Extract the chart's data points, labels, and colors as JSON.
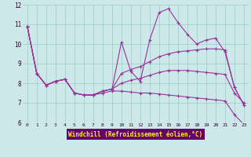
{
  "xlabel": "Windchill (Refroidissement éolien,°C)",
  "background_color": "#cce8e8",
  "line_color": "#993399",
  "grid_color": "#99cccc",
  "xlabel_bg": "#660066",
  "xlabel_fg": "#ffff00",
  "xlim": [
    -0.5,
    23.5
  ],
  "ylim": [
    6,
    12
  ],
  "yticks": [
    6,
    7,
    8,
    9,
    10,
    11,
    12
  ],
  "xticks": [
    0,
    1,
    2,
    3,
    4,
    5,
    6,
    7,
    8,
    9,
    10,
    11,
    12,
    13,
    14,
    15,
    16,
    17,
    18,
    19,
    20,
    21,
    22,
    23
  ],
  "lines": [
    {
      "x": [
        0,
        1,
        2,
        3,
        4,
        5,
        6,
        7,
        8,
        9,
        10,
        11,
        12,
        13,
        14,
        15,
        16,
        17,
        18,
        19,
        20,
        21,
        22,
        23
      ],
      "y": [
        10.9,
        8.5,
        7.9,
        8.1,
        8.2,
        7.5,
        7.4,
        7.4,
        7.6,
        7.7,
        10.1,
        8.6,
        8.1,
        10.2,
        11.6,
        11.8,
        11.1,
        10.5,
        10.0,
        10.2,
        10.3,
        9.6,
        7.8,
        6.9
      ]
    },
    {
      "x": [
        0,
        1,
        2,
        3,
        4,
        5,
        6,
        7,
        8,
        9,
        10,
        11,
        12,
        13,
        14,
        15,
        16,
        17,
        18,
        19,
        20,
        21,
        22,
        23
      ],
      "y": [
        10.9,
        8.5,
        7.9,
        8.1,
        8.2,
        7.5,
        7.4,
        7.4,
        7.6,
        7.7,
        8.5,
        8.7,
        8.85,
        9.1,
        9.35,
        9.5,
        9.6,
        9.65,
        9.7,
        9.75,
        9.75,
        9.7,
        7.8,
        6.9
      ]
    },
    {
      "x": [
        0,
        1,
        2,
        3,
        4,
        5,
        6,
        7,
        8,
        9,
        10,
        11,
        12,
        13,
        14,
        15,
        16,
        17,
        18,
        19,
        20,
        21,
        22,
        23
      ],
      "y": [
        10.9,
        8.5,
        7.9,
        8.1,
        8.2,
        7.5,
        7.4,
        7.4,
        7.6,
        7.7,
        8.0,
        8.15,
        8.25,
        8.4,
        8.55,
        8.65,
        8.65,
        8.65,
        8.6,
        8.55,
        8.5,
        8.45,
        7.5,
        7.0
      ]
    },
    {
      "x": [
        0,
        1,
        2,
        3,
        4,
        5,
        6,
        7,
        8,
        9,
        10,
        11,
        12,
        13,
        14,
        15,
        16,
        17,
        18,
        19,
        20,
        21,
        22,
        23
      ],
      "y": [
        10.9,
        8.5,
        7.9,
        8.1,
        8.2,
        7.5,
        7.4,
        7.4,
        7.5,
        7.6,
        7.6,
        7.55,
        7.5,
        7.5,
        7.45,
        7.4,
        7.35,
        7.3,
        7.25,
        7.2,
        7.15,
        7.1,
        6.4,
        5.9
      ]
    }
  ]
}
